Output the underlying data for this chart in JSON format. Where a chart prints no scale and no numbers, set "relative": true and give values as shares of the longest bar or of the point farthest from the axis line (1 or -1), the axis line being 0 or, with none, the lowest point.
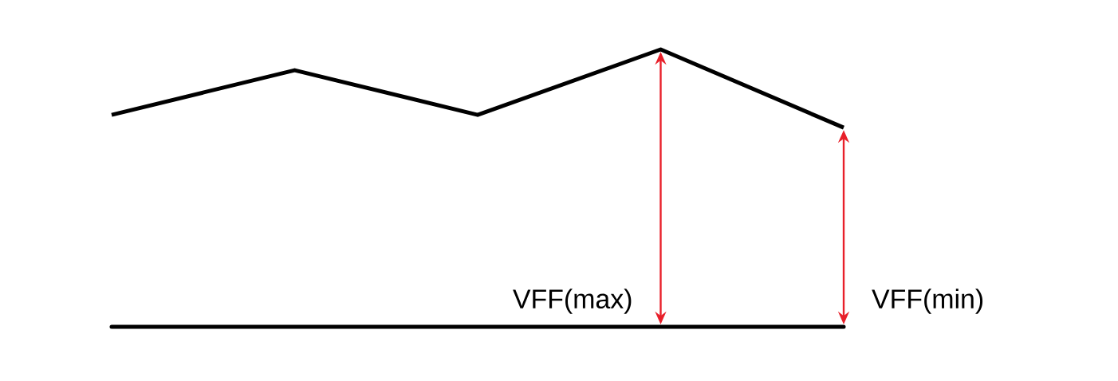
{
  "chart_data": {
    "type": "line",
    "relative": true,
    "categories": [
      null,
      null,
      null,
      null,
      null
    ],
    "series": [
      {
        "color": "#000000",
        "values": [
          0.764,
          0.925,
          0.764,
          1,
          0.718
        ]
      }
    ],
    "marker": "none",
    "line_style": "solid",
    "grid": false,
    "annotations": [
      "VFF(max)",
      "VFF(min)"
    ]
  }
}
